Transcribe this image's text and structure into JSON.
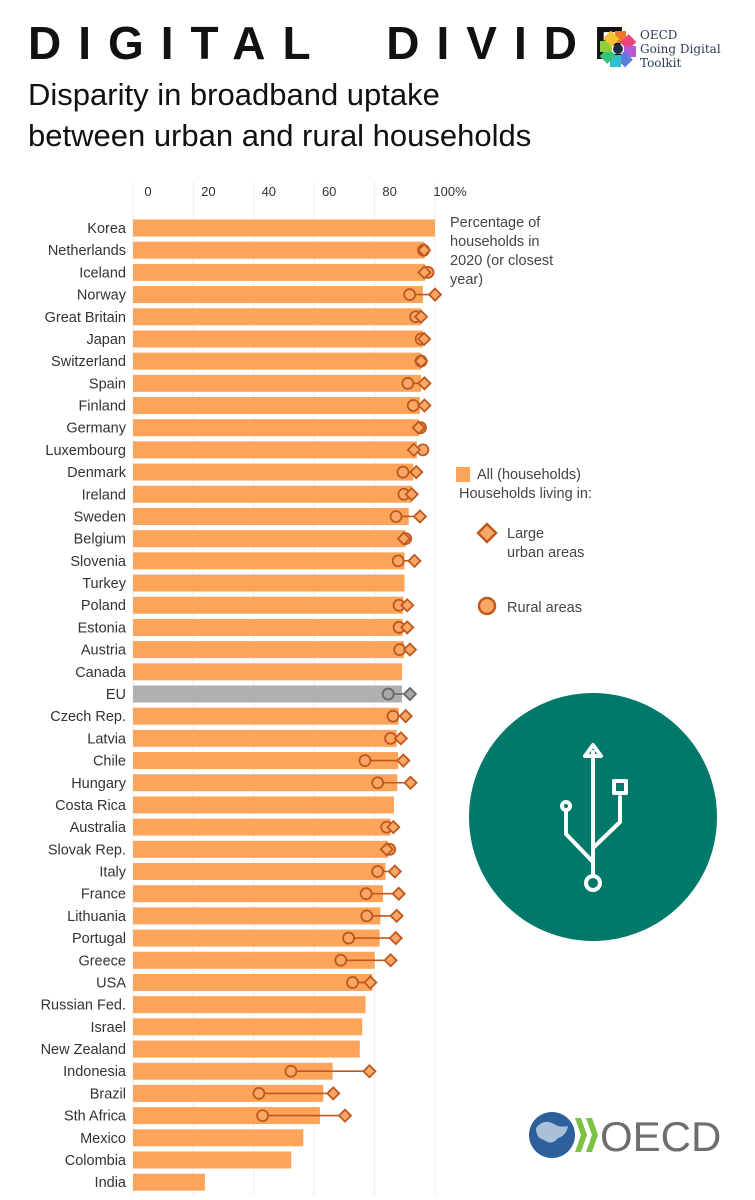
{
  "header": {
    "title": "DIGITAL  DIVIDE",
    "subtitle_line1": "Disparity in broadband uptake",
    "subtitle_line2": "between urban and rural households",
    "toolkit_logo_lines": [
      "OECD",
      "Going Digital",
      "Toolkit"
    ],
    "oecd_logo": "OECD"
  },
  "colors": {
    "bar": "#FBA45A",
    "eu_bar": "#B0B0B0",
    "marker": "#C0581E",
    "marker_fill": "#F9A766",
    "teal": "#00786A"
  },
  "icons": {
    "usb": "usb-icon",
    "globe": "globe-icon"
  },
  "chart_data": {
    "type": "bar",
    "orientation": "horizontal",
    "xlim": [
      0,
      100
    ],
    "xticks": [
      "0",
      "20",
      "40",
      "60",
      "80",
      "100%"
    ],
    "grid": true,
    "annotation": "Percentage of households in 2020 (or closest year)",
    "annotation_lines": [
      "Percentage of",
      "households in",
      "2020 (or closest",
      "year)"
    ],
    "legend": {
      "all": "All (households)",
      "living_in": "Households living in:",
      "urban_lines": [
        "Large",
        "urban areas"
      ],
      "rural": "Rural areas",
      "placement": "right"
    },
    "categories": [
      "Korea",
      "Netherlands",
      "Iceland",
      "Norway",
      "Great Britain",
      "Japan",
      "Switzerland",
      "Spain",
      "Finland",
      "Germany",
      "Luxembourg",
      "Denmark",
      "Ireland",
      "Sweden",
      "Belgium",
      "Slovenia",
      "Turkey",
      "Poland",
      "Estonia",
      "Austria",
      "Canada",
      "EU",
      "Czech Rep.",
      "Latvia",
      "Chile",
      "Hungary",
      "Costa Rica",
      "Australia",
      "Slovak Rep.",
      "Italy",
      "France",
      "Lithuania",
      "Portugal",
      "Greece",
      "USA",
      "Russian Fed.",
      "Israel",
      "New Zealand",
      "Indonesia",
      "Brazil",
      "Sth Africa",
      "Mexico",
      "Colombia",
      "India"
    ],
    "series": [
      {
        "name": "All (households)",
        "values": [
          100,
          96.4,
          96.7,
          96,
          95.4,
          96,
          95.4,
          95.4,
          95,
          94.6,
          94,
          92.8,
          92.4,
          91.3,
          90.3,
          89.9,
          89.9,
          89.5,
          89.3,
          89.7,
          89.1,
          89.1,
          88,
          87.3,
          87.8,
          87.5,
          86.4,
          85.3,
          84.5,
          83.6,
          82.8,
          81.9,
          81.7,
          80,
          79.3,
          77,
          75.9,
          75.1,
          66.1,
          63,
          61.9,
          56.4,
          52.4,
          23.8
        ]
      },
      {
        "name": "Large urban areas",
        "values": [
          null,
          96.4,
          96.5,
          100,
          95.4,
          96.4,
          95.4,
          96.5,
          96.5,
          94.6,
          93,
          93.8,
          92.3,
          95,
          89.7,
          93.2,
          null,
          90.8,
          90.8,
          91.7,
          null,
          91.7,
          90.3,
          88.7,
          89.5,
          91.9,
          null,
          86.2,
          84,
          86.7,
          88,
          87.3,
          87,
          85.3,
          78.6,
          null,
          null,
          null,
          78.3,
          66.3,
          70.2,
          null,
          null,
          null
        ]
      },
      {
        "name": "Rural areas",
        "values": [
          null,
          96.2,
          97.7,
          91.6,
          93.6,
          95.4,
          95.4,
          91,
          92.8,
          95.2,
          96,
          89.4,
          89.7,
          87.1,
          90.3,
          87.8,
          null,
          88.1,
          88.1,
          88.3,
          null,
          84.5,
          86.1,
          85.3,
          76.8,
          81,
          null,
          84,
          85,
          81,
          77.2,
          77.4,
          71.4,
          68.8,
          72.7,
          null,
          null,
          null,
          52.3,
          41.7,
          42.9,
          null,
          null,
          null
        ]
      }
    ]
  }
}
